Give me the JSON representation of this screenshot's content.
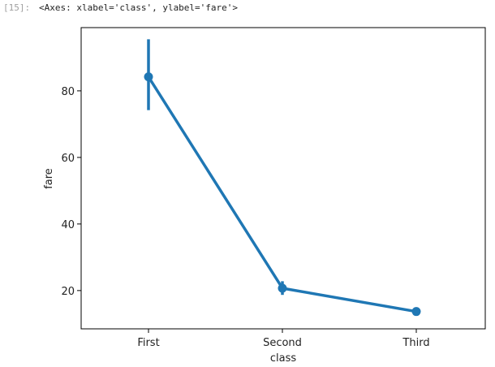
{
  "cell": {
    "prompt": "[15]:",
    "output_repr": "<Axes: xlabel='class', ylabel='fare'>"
  },
  "colors": {
    "series": "#1f77b4",
    "axis": "#000000",
    "text": "#222222"
  },
  "chart_data": {
    "type": "line",
    "subtype": "pointplot-with-error-bars",
    "title": "",
    "xlabel": "class",
    "ylabel": "fare",
    "categories": [
      "First",
      "Second",
      "Third"
    ],
    "series": [
      {
        "values": [
          84.2,
          20.7,
          13.7
        ],
        "ci_low": [
          74.2,
          18.7,
          12.8
        ],
        "ci_high": [
          95.5,
          22.8,
          14.5
        ]
      }
    ],
    "ylim": [
      8.5,
      99
    ],
    "yticks": [
      20,
      40,
      60,
      80
    ],
    "grid": false,
    "legend": "none"
  }
}
